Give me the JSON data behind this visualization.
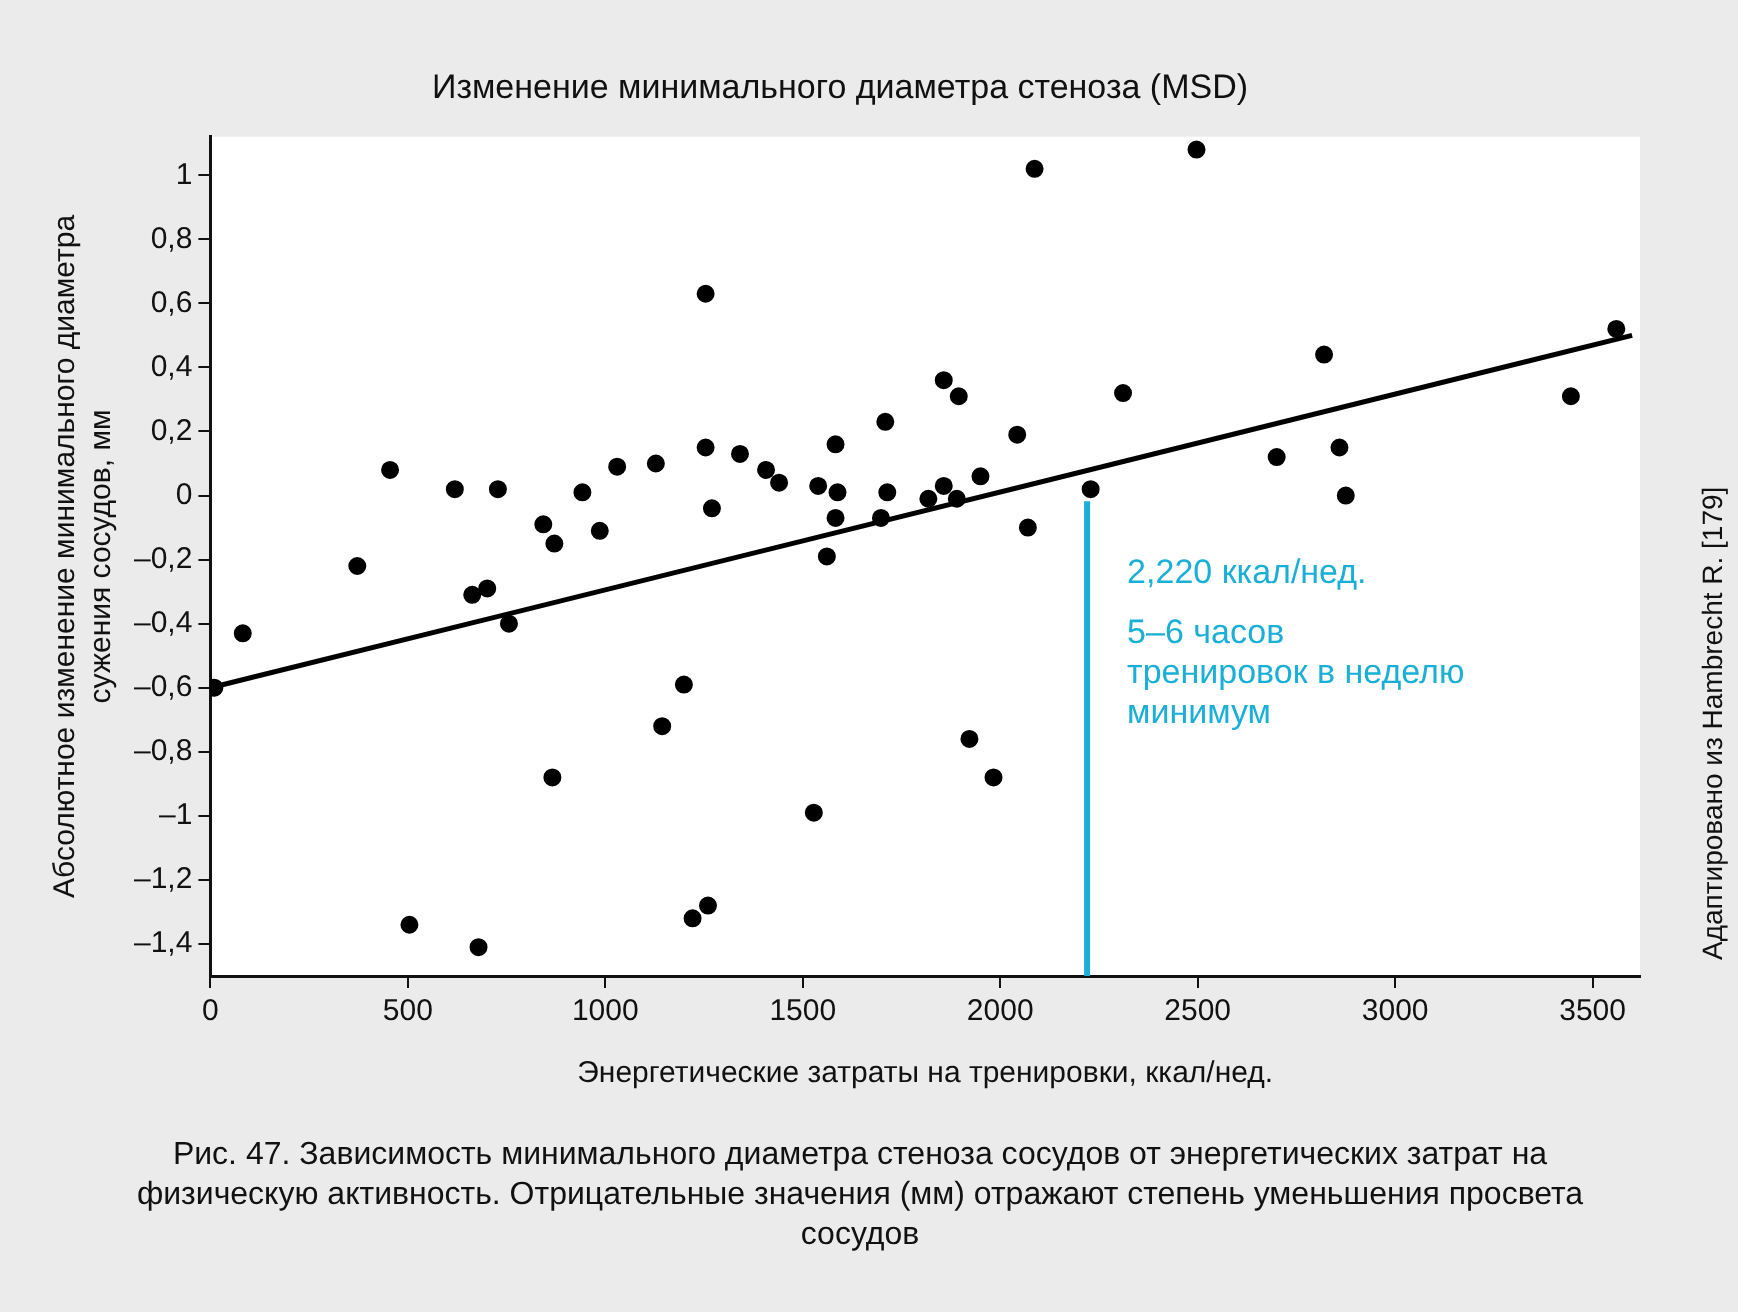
{
  "chart_data": {
    "type": "scatter",
    "title": "Изменение минимального диаметра стеноза (MSD)",
    "xlabel": "Энергетические затраты на тренировки, ккал/нед.",
    "ylabel": "Абсолютное изменение минимального диаметра сужения сосудов, мм",
    "series": [
      {
        "color": "#000000",
        "x": [
          10,
          82,
          372,
          455,
          504,
          619,
          663,
          701,
          679,
          728,
          756,
          843,
          871,
          866,
          942,
          986,
          1030,
          1128,
          1144,
          1199,
          1221,
          1260,
          1254,
          1254,
          1270,
          1341,
          1407,
          1440,
          1528,
          1539,
          1561,
          1583,
          1588,
          1583,
          1698,
          1709,
          1714,
          1818,
          1857,
          1857,
          1895,
          1890,
          1922,
          1950,
          1983,
          2043,
          2070,
          2087,
          2229,
          2311,
          2497,
          2700,
          2820,
          2859,
          2875,
          3445,
          3560
        ],
        "values": [
          -0.6,
          -0.43,
          -0.22,
          0.08,
          -1.34,
          0.02,
          -0.31,
          -0.29,
          -1.41,
          0.02,
          -0.4,
          -0.09,
          -0.15,
          -0.88,
          0.01,
          -0.11,
          0.09,
          0.1,
          -0.72,
          -0.59,
          -1.32,
          -1.28,
          0.63,
          0.15,
          -0.04,
          0.13,
          0.08,
          0.04,
          -0.99,
          0.03,
          -0.19,
          0.16,
          0.01,
          -0.07,
          -0.07,
          0.23,
          0.01,
          -0.01,
          0.36,
          0.03,
          0.31,
          -0.01,
          -0.76,
          0.06,
          -0.88,
          0.19,
          -0.1,
          1.02,
          0.02,
          0.32,
          1.08,
          0.12,
          0.44,
          0.15,
          0,
          0.31,
          0.52
        ]
      },
      {
        "type": "line",
        "marker": "none",
        "color": "#000000",
        "x": [
          0,
          3600
        ],
        "values": [
          -0.6,
          0.5
        ]
      }
    ],
    "xlim": [
      0,
      3620
    ],
    "ylim": [
      -1.5,
      1.12
    ],
    "xticks": [
      0,
      500,
      1000,
      1500,
      2000,
      2500,
      3000,
      3500
    ],
    "yticks": [
      {
        "value": -1.4,
        "label": "–1,4"
      },
      {
        "value": -1.2,
        "label": "–1,2"
      },
      {
        "value": -1,
        "label": "–1"
      },
      {
        "value": -0.8,
        "label": "–0,8"
      },
      {
        "value": -0.6,
        "label": "–0,6"
      },
      {
        "value": -0.4,
        "label": "–0,4"
      },
      {
        "value": -0.2,
        "label": "–0,2"
      },
      {
        "value": 0,
        "label": "0"
      },
      {
        "value": 0.2,
        "label": "0,2"
      },
      {
        "value": 0.4,
        "label": "0,4"
      },
      {
        "value": 0.6,
        "label": "0,6"
      },
      {
        "value": 0.8,
        "label": "0,8"
      },
      {
        "value": 1,
        "label": "1"
      }
    ],
    "ref_lines": [
      {
        "axis": "x",
        "value": 2220,
        "label": "2,220 ккал/нед.",
        "color": "#1aafd6"
      }
    ],
    "annotations": [
      "5–6 часов тренировок в неделю минимум",
      "Рис. 47. Зависимость минимального диаметра стеноза сосудов от энергетических затрат на физическую активность. Отрицательные значения (мм) отражают степень уменьшения просвета сосудов",
      "Адаптировано из Hambrecht R. [179]"
    ],
    "marker": "circle",
    "grid": false,
    "legend": false
  }
}
